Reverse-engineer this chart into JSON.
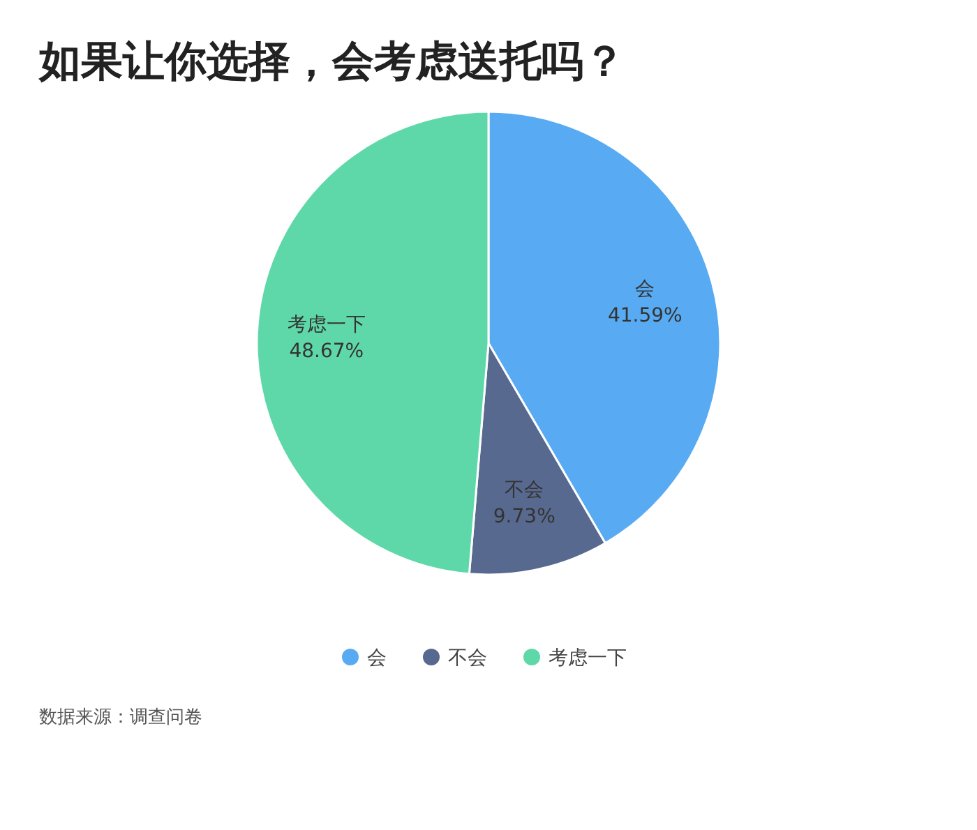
{
  "chart_data": {
    "type": "pie",
    "title": "如果让你选择，会考虑送托吗？",
    "categories": [
      "会",
      "不会",
      "考虑一下"
    ],
    "values": [
      41.59,
      9.73,
      48.67
    ],
    "value_labels": [
      "41.59%",
      "9.73%",
      "48.67%"
    ],
    "colors": [
      "#58abf2",
      "#58698f",
      "#5fd8a9"
    ],
    "legend": "bottom",
    "annotations": [
      "数据来源：调查问卷"
    ]
  }
}
